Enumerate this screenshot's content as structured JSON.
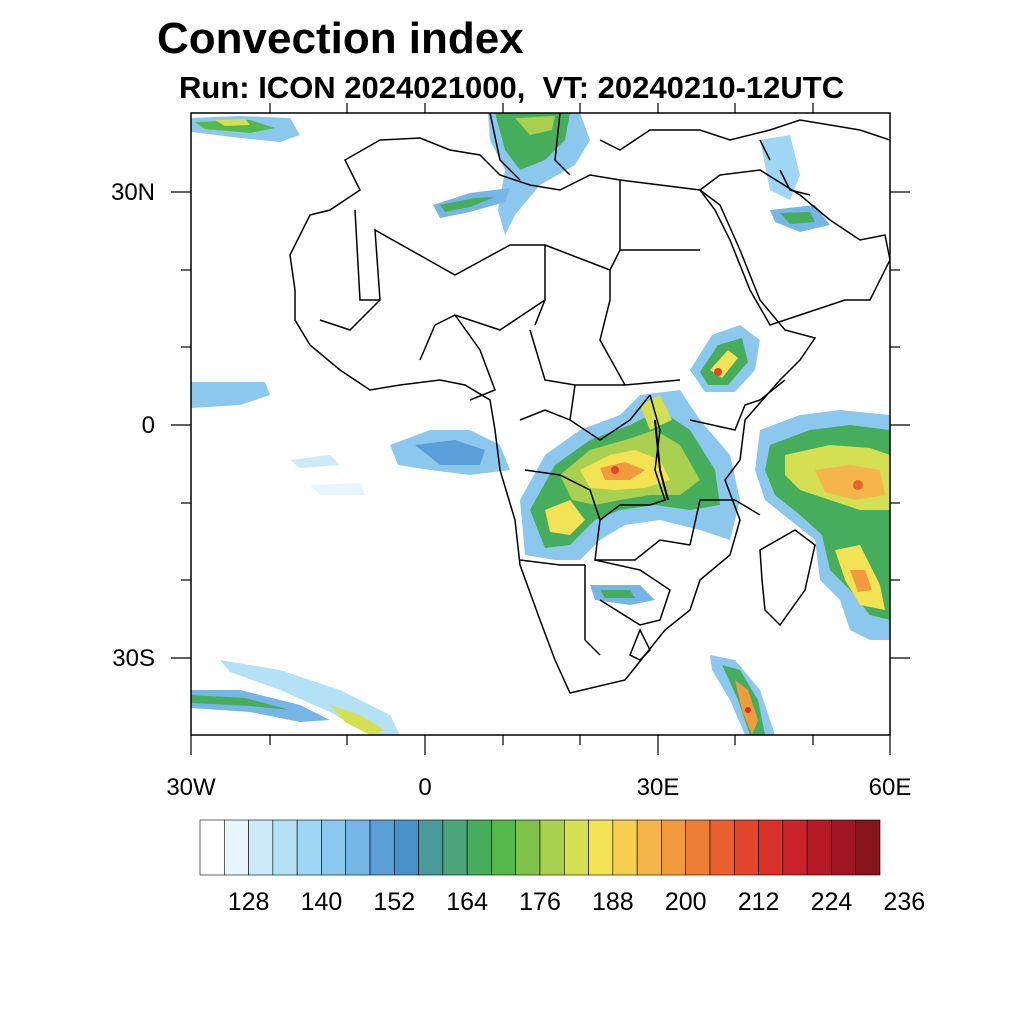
{
  "title": "Convection index",
  "subtitle": "Run: ICON 2024021000,  VT: 20240210-12UTC",
  "map": {
    "extent": {
      "lon_min": -30,
      "lon_max": 60,
      "lat_min": -40,
      "lat_max": 40
    },
    "y_labels": [
      "30N",
      "0",
      "30S"
    ],
    "x_labels": [
      "30W",
      "0",
      "30E",
      "60E"
    ]
  },
  "colorbar": {
    "colors": [
      "#ffffff",
      "#e9f5fc",
      "#cceaf8",
      "#b3e1f6",
      "#9ed6f4",
      "#8cc8ee",
      "#76b6e6",
      "#5a9fd8",
      "#4a91c8",
      "#4a9a9a",
      "#4aa57a",
      "#46ad5c",
      "#55b84a",
      "#7ec24a",
      "#a9d04e",
      "#d4df52",
      "#f3e253",
      "#f8ce4f",
      "#f6b54a",
      "#f39a3e",
      "#ee7d35",
      "#e8612f",
      "#e2462c",
      "#d93128",
      "#c9222a",
      "#b51a27",
      "#9f1622",
      "#871419"
    ],
    "labels": [
      "128",
      "140",
      "152",
      "164",
      "176",
      "188",
      "200",
      "212",
      "224",
      "236"
    ]
  }
}
